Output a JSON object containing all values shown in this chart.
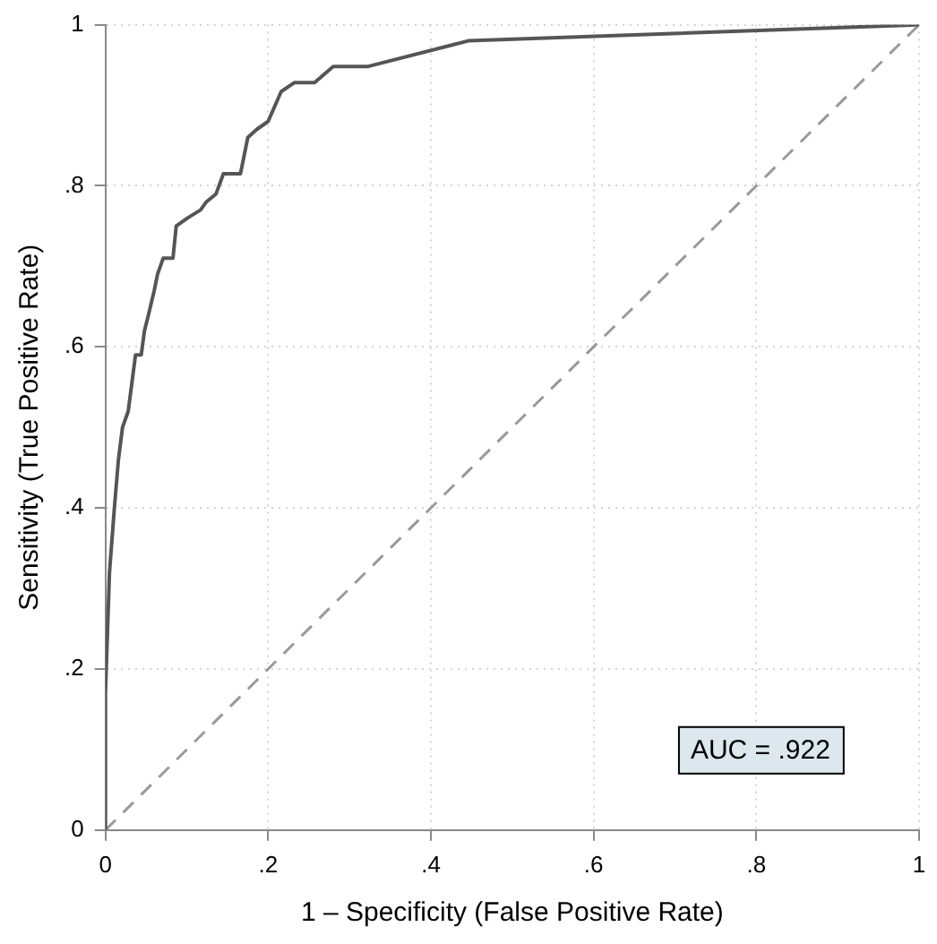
{
  "chart_data": {
    "type": "line",
    "xlabel": "1 – Specificity (False Positive Rate)",
    "ylabel": "Sensitivity (True Positive Rate)",
    "xlim": [
      0,
      1
    ],
    "ylim": [
      0,
      1
    ],
    "xticks": [
      0,
      {
        "value": 0.2,
        "label": ".2"
      },
      {
        "value": 0.4,
        "label": ".4"
      },
      {
        "value": 0.6,
        "label": ".6"
      },
      {
        "value": 0.8,
        "label": ".8"
      },
      1
    ],
    "yticks": [
      0,
      {
        "value": 0.2,
        "label": ".2"
      },
      {
        "value": 0.4,
        "label": ".4"
      },
      {
        "value": 0.6,
        "label": ".6"
      },
      {
        "value": 0.8,
        "label": ".8"
      },
      1
    ],
    "grid": true,
    "legend": false,
    "marker": "none",
    "annotations": [
      "AUC = .922"
    ],
    "series": [
      {
        "type": "line",
        "color": "#555555",
        "line_style": "solid",
        "x": [
          0,
          0,
          0.005,
          0.011,
          0.016,
          0.021,
          0.028,
          0.037,
          0.044,
          0.048,
          0.053,
          0.06,
          0.064,
          0.071,
          0.083,
          0.087,
          0.101,
          0.117,
          0.124,
          0.136,
          0.145,
          0.166,
          0.175,
          0.186,
          0.2,
          0.216,
          0.232,
          0.257,
          0.28,
          0.322,
          0.446,
          1
        ],
        "values": [
          0,
          0.17,
          0.32,
          0.4,
          0.46,
          0.5,
          0.52,
          0.59,
          0.59,
          0.62,
          0.64,
          0.67,
          0.69,
          0.71,
          0.71,
          0.75,
          0.76,
          0.77,
          0.78,
          0.79,
          0.815,
          0.815,
          0.86,
          0.87,
          0.88,
          0.917,
          0.928,
          0.928,
          0.948,
          0.948,
          0.98,
          1
        ]
      },
      {
        "type": "line",
        "color": "#999999",
        "line_style": "dashed",
        "x": [
          0,
          1
        ],
        "values": [
          0,
          1
        ]
      }
    ]
  }
}
